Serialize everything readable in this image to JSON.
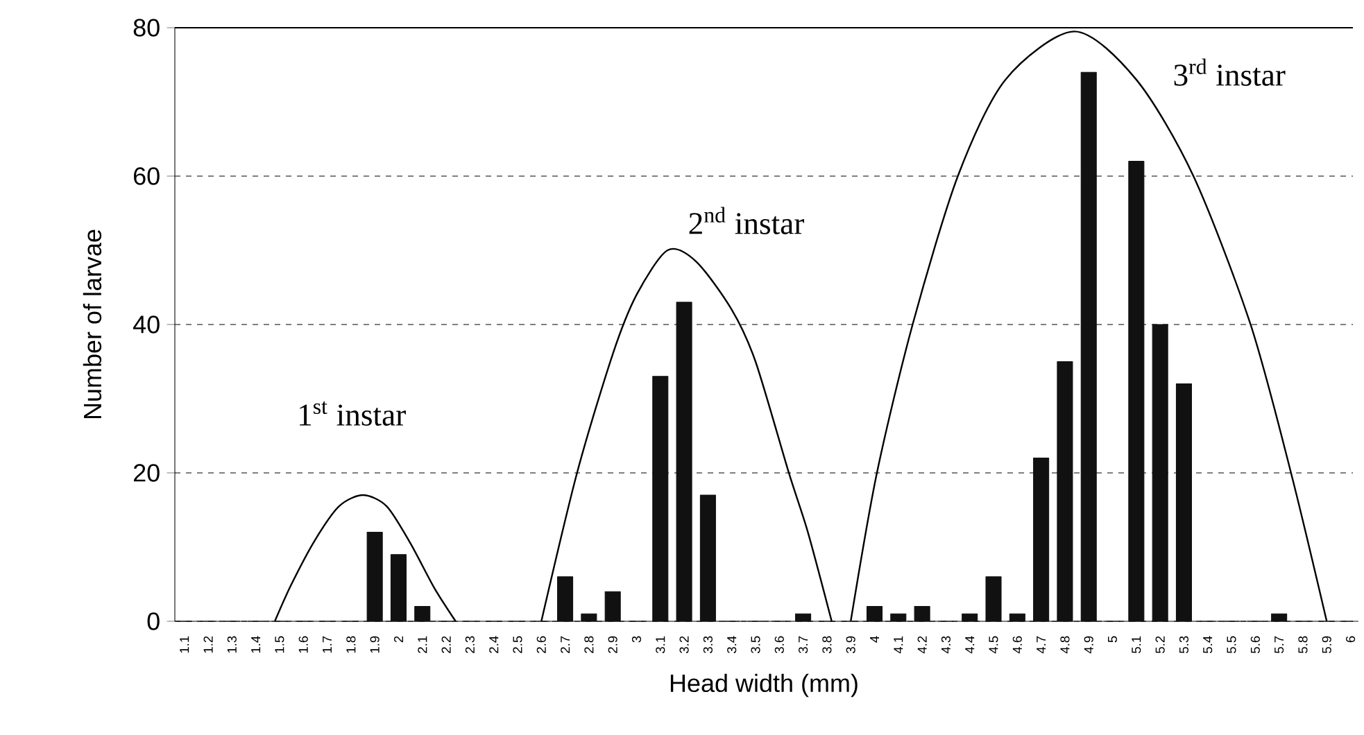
{
  "chart_data": {
    "type": "bar",
    "xlabel": "Head width (mm)",
    "ylabel": "Number of larvae",
    "xlim": [
      1.06,
      6.01
    ],
    "ylim": [
      0,
      80
    ],
    "yticks": [
      0,
      20,
      40,
      60,
      80
    ],
    "xticks": [
      1.1,
      1.2,
      1.3,
      1.4,
      1.5,
      1.6,
      1.7,
      1.8,
      1.9,
      2,
      2.1,
      2.2,
      2.3,
      2.4,
      2.5,
      2.6,
      2.7,
      2.8,
      2.9,
      3,
      3.1,
      3.2,
      3.3,
      3.4,
      3.5,
      3.6,
      3.7,
      3.8,
      3.9,
      4,
      4.1,
      4.2,
      4.3,
      4.4,
      4.5,
      4.6,
      4.7,
      4.8,
      4.9,
      5,
      5.1,
      5.2,
      5.3,
      5.4,
      5.5,
      5.6,
      5.7,
      5.8,
      5.9,
      6
    ],
    "grid": "y",
    "series": [
      {
        "color": "#111111",
        "x": [
          1.1,
          1.2,
          1.3,
          1.4,
          1.5,
          1.6,
          1.7,
          1.8,
          1.9,
          2,
          2.1,
          2.2,
          2.3,
          2.4,
          2.5,
          2.6,
          2.7,
          2.8,
          2.9,
          3,
          3.1,
          3.2,
          3.3,
          3.4,
          3.5,
          3.6,
          3.7,
          3.8,
          3.9,
          4,
          4.1,
          4.2,
          4.3,
          4.4,
          4.5,
          4.6,
          4.7,
          4.8,
          4.9,
          5,
          5.1,
          5.2,
          5.3,
          5.4,
          5.5,
          5.6,
          5.7,
          5.8,
          5.9,
          6
        ],
        "values": [
          0,
          0,
          0,
          0,
          0,
          0,
          0,
          0,
          12,
          9,
          2,
          0,
          0,
          0,
          0,
          0,
          6,
          1,
          4,
          0,
          33,
          43,
          17,
          0,
          0,
          0,
          1,
          0,
          0,
          2,
          1,
          2,
          0,
          1,
          6,
          1,
          22,
          35,
          74,
          0,
          62,
          40,
          32,
          0,
          0,
          0,
          1,
          0,
          0,
          0
        ]
      },
      {
        "type": "line",
        "color": "#000000",
        "x": [
          1.48,
          1.55,
          1.65,
          1.75,
          1.85,
          1.95,
          2.05,
          2.15,
          2.24
        ],
        "values": [
          0,
          5,
          11,
          15.5,
          17,
          15.5,
          10.5,
          4.5,
          0
        ]
      },
      {
        "type": "line",
        "color": "#000000",
        "x": [
          2.6,
          2.75,
          2.9,
          3.0,
          3.13,
          3.25,
          3.4,
          3.5,
          3.64,
          3.72,
          3.82
        ],
        "values": [
          0,
          20,
          36,
          44,
          50,
          48.5,
          42,
          35,
          20,
          12,
          0
        ]
      },
      {
        "type": "line",
        "color": "#000000",
        "x": [
          3.9,
          4.01,
          4.16,
          4.35,
          4.55,
          4.84,
          5.1,
          5.34,
          5.58,
          5.75,
          5.9
        ],
        "values": [
          0,
          20,
          40,
          60,
          73,
          79.5,
          73,
          60,
          40,
          20,
          0
        ]
      }
    ],
    "annotations": [
      "1$^{st}$ instar",
      "2$^{nd}$ instar",
      "3$^{rd}$ instar"
    ]
  }
}
